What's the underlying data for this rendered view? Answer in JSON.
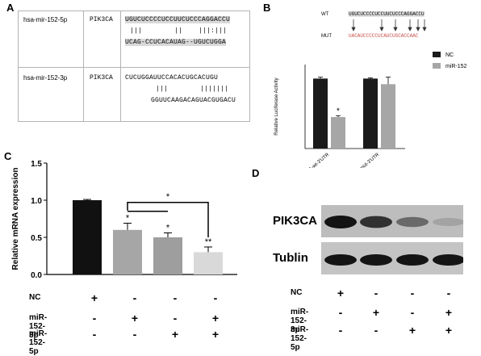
{
  "panels": {
    "A": "A",
    "B": "B",
    "C": "C",
    "D": "D"
  },
  "panelA": {
    "rows": [
      {
        "mirna": "hsa-mir-152-5p",
        "gene": "PIK3CA",
        "top_seq": "UGUCUCCCCUCCUUCUCCCAGGACCU",
        "pairs": "|||        ||    |||:|||",
        "bottom_seq": "UCAG-CCUCACAUAG--UGUCUGGA"
      },
      {
        "mirna": "hsa-mir-152-3p",
        "gene": "PIK3CA",
        "top_seq": "CUCUGGAUUCCACACUGCACUGU",
        "pairs": "|||        |||||||",
        "bottom_seq": "GGUUCAAGACAGUACGUGACU"
      }
    ]
  },
  "panelB": {
    "wt_label": "WT",
    "mut_label": "MUT",
    "wt_seq": "UGUCUCCCCUCCUUCUCCCAGGACCU",
    "mut_seq": "UACAUCCCCCUCAUCUGCACCAAC",
    "highlight_color": "#c8504a"
  },
  "chart_data": [
    {
      "type": "bar",
      "panel": "B",
      "categories": [
        "PIK3CA-wt-3'UTR",
        "PIK3CA-mut-3'UTR"
      ],
      "series": [
        {
          "name": "NC",
          "values": [
            1.0,
            1.0
          ],
          "errors": [
            0.02,
            0.01
          ],
          "color": "#1a1a1a"
        },
        {
          "name": "miR-152",
          "values": [
            0.45,
            0.92
          ],
          "errors": [
            0.02,
            0.1
          ],
          "color": "#a6a6a6"
        }
      ],
      "ylabel": "Relative Luciferase Activity",
      "xlabel": "",
      "ylim": [
        0,
        1.2
      ],
      "annotations": [
        {
          "text": "*",
          "category": "PIK3CA-wt-3'UTR",
          "series": "miR-152"
        }
      ],
      "legend": "top-right"
    },
    {
      "type": "bar",
      "panel": "C",
      "categories": [
        "NC",
        "miR-152-3p",
        "miR-152-5p",
        "miR-152-3p + miR-152-5p"
      ],
      "values": [
        1.0,
        0.6,
        0.5,
        0.3
      ],
      "errors": [
        0.01,
        0.09,
        0.06,
        0.07
      ],
      "colors": [
        "#111111",
        "#a6a6a6",
        "#9e9e9e",
        "#d9d9d9"
      ],
      "ylabel": "Relative mRNA expression",
      "xlabel": "",
      "ylim": [
        0,
        1.5
      ],
      "yticks": [
        "0.0",
        "0.5",
        "1.0",
        "1.5"
      ],
      "bar_labels": [
        "",
        "*",
        "*",
        "**"
      ],
      "brackets": [
        {
          "from": "miR-152-3p",
          "to": "miR-152-3p + miR-152-5p",
          "label": "*"
        },
        {
          "from": "miR-152-3p",
          "to": "miR-152-5p",
          "label": ""
        }
      ]
    }
  ],
  "panelC_table": {
    "rows": [
      {
        "label": "NC",
        "marks": [
          "+",
          "-",
          "-",
          "-"
        ]
      },
      {
        "label": "miR-152-3p",
        "marks": [
          "-",
          "+",
          "-",
          "+"
        ]
      },
      {
        "label": "miR-152-5p",
        "marks": [
          "-",
          "-",
          "+",
          "+"
        ]
      }
    ]
  },
  "panelD": {
    "blot_labels": [
      "PIK3CA",
      "Tublin"
    ],
    "pik3ca_intensity": [
      1.0,
      0.85,
      0.55,
      0.25
    ],
    "tublin_intensity": [
      1.0,
      1.0,
      1.0,
      1.0
    ],
    "rows": [
      {
        "label": "NC",
        "marks": [
          "+",
          "-",
          "-",
          "-"
        ]
      },
      {
        "label": "miR-152-3p",
        "marks": [
          "-",
          "+",
          "-",
          "+"
        ]
      },
      {
        "label": "miR-152-5p",
        "marks": [
          "-",
          "-",
          "+",
          "+"
        ]
      }
    ]
  }
}
